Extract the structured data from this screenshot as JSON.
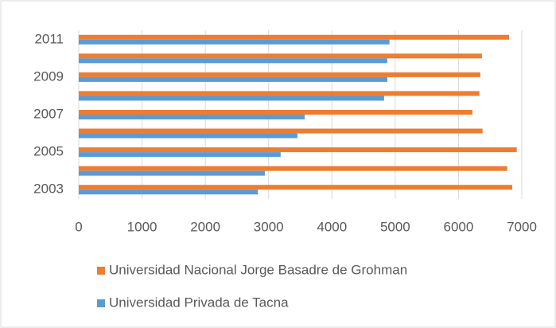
{
  "chart_data": {
    "type": "bar",
    "orientation": "horizontal",
    "categories": [
      "2003",
      null,
      "2005",
      null,
      "2007",
      null,
      "2009",
      null,
      "2011"
    ],
    "series": [
      {
        "name": "Universidad Nacional Jorge Basadre de Grohman",
        "color": "#ed7d31",
        "values": [
          6850,
          6770,
          6920,
          6380,
          6220,
          6330,
          6345,
          6370,
          6800
        ]
      },
      {
        "name": "Universidad Privada de Tacna",
        "color": "#5b9bd5",
        "values": [
          2830,
          2940,
          3190,
          3455,
          3570,
          4825,
          4875,
          4875,
          4910
        ]
      }
    ],
    "xlim": [
      0,
      7000
    ],
    "xticks": [
      0,
      1000,
      2000,
      3000,
      4000,
      5000,
      6000,
      7000
    ],
    "grid": true,
    "legend": "bottom"
  }
}
